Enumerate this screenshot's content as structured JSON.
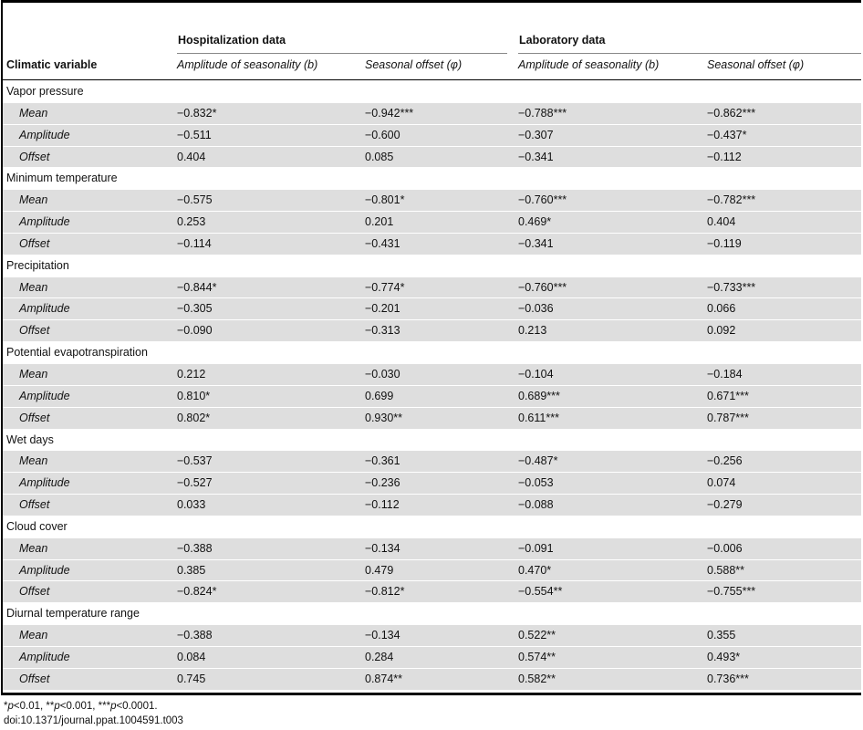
{
  "header": {
    "group_hosp": "Hospitalization data",
    "group_lab": "Laboratory data",
    "col_variable": "Climatic variable",
    "col_hosp_amp": "Amplitude of seasonality (b)",
    "col_hosp_off": "Seasonal offset (φ)",
    "col_lab_amp": "Amplitude of seasonality (b)",
    "col_lab_off": "Seasonal offset (φ)"
  },
  "sections": [
    {
      "title": "Vapor pressure",
      "rows": [
        {
          "label": "Mean",
          "v": [
            "−0.832*",
            "−0.942***",
            "−0.788***",
            "−0.862***"
          ]
        },
        {
          "label": "Amplitude",
          "v": [
            "−0.511",
            "−0.600",
            "−0.307",
            "−0.437*"
          ]
        },
        {
          "label": "Offset",
          "v": [
            "0.404",
            "0.085",
            "−0.341",
            "−0.112"
          ]
        }
      ]
    },
    {
      "title": "Minimum temperature",
      "rows": [
        {
          "label": "Mean",
          "v": [
            "−0.575",
            "−0.801*",
            "−0.760***",
            "−0.782***"
          ]
        },
        {
          "label": "Amplitude",
          "v": [
            "0.253",
            "0.201",
            "0.469*",
            "0.404"
          ]
        },
        {
          "label": "Offset",
          "v": [
            "−0.114",
            "−0.431",
            "−0.341",
            "−0.119"
          ]
        }
      ]
    },
    {
      "title": "Precipitation",
      "rows": [
        {
          "label": "Mean",
          "v": [
            "−0.844*",
            "−0.774*",
            "−0.760***",
            "−0.733***"
          ]
        },
        {
          "label": "Amplitude",
          "v": [
            "−0.305",
            "−0.201",
            "−0.036",
            "0.066"
          ]
        },
        {
          "label": "Offset",
          "v": [
            "−0.090",
            "−0.313",
            "0.213",
            "0.092"
          ]
        }
      ]
    },
    {
      "title": "Potential evapotranspiration",
      "rows": [
        {
          "label": "Mean",
          "v": [
            "0.212",
            "−0.030",
            "−0.104",
            "−0.184"
          ]
        },
        {
          "label": "Amplitude",
          "v": [
            "0.810*",
            "0.699",
            "0.689***",
            "0.671***"
          ]
        },
        {
          "label": "Offset",
          "v": [
            "0.802*",
            "0.930**",
            "0.611***",
            "0.787***"
          ]
        }
      ]
    },
    {
      "title": "Wet days",
      "rows": [
        {
          "label": "Mean",
          "v": [
            "−0.537",
            "−0.361",
            "−0.487*",
            "−0.256"
          ]
        },
        {
          "label": "Amplitude",
          "v": [
            "−0.527",
            "−0.236",
            "−0.053",
            "0.074"
          ]
        },
        {
          "label": "Offset",
          "v": [
            "0.033",
            "−0.112",
            "−0.088",
            "−0.279"
          ]
        }
      ]
    },
    {
      "title": "Cloud cover",
      "rows": [
        {
          "label": "Mean",
          "v": [
            "−0.388",
            "−0.134",
            "−0.091",
            "−0.006"
          ]
        },
        {
          "label": "Amplitude",
          "v": [
            "0.385",
            "0.479",
            "0.470*",
            "0.588**"
          ]
        },
        {
          "label": "Offset",
          "v": [
            "−0.824*",
            "−0.812*",
            "−0.554**",
            "−0.755***"
          ]
        }
      ]
    },
    {
      "title": "Diurnal temperature range",
      "rows": [
        {
          "label": "Mean",
          "v": [
            "−0.388",
            "−0.134",
            "0.522**",
            "0.355"
          ]
        },
        {
          "label": "Amplitude",
          "v": [
            "0.084",
            "0.284",
            "0.574**",
            "0.493*"
          ]
        },
        {
          "label": "Offset",
          "v": [
            "0.745",
            "0.874**",
            "0.582**",
            "0.736***"
          ]
        }
      ]
    }
  ],
  "footnote": {
    "p1": "p",
    "t1": "<0.01, **",
    "p2": "p",
    "t2": "<0.001, ***",
    "p3": "p",
    "t3": "<0.0001.",
    "prefix": "*",
    "doi": "doi:10.1371/journal.ppat.1004591.t003"
  }
}
